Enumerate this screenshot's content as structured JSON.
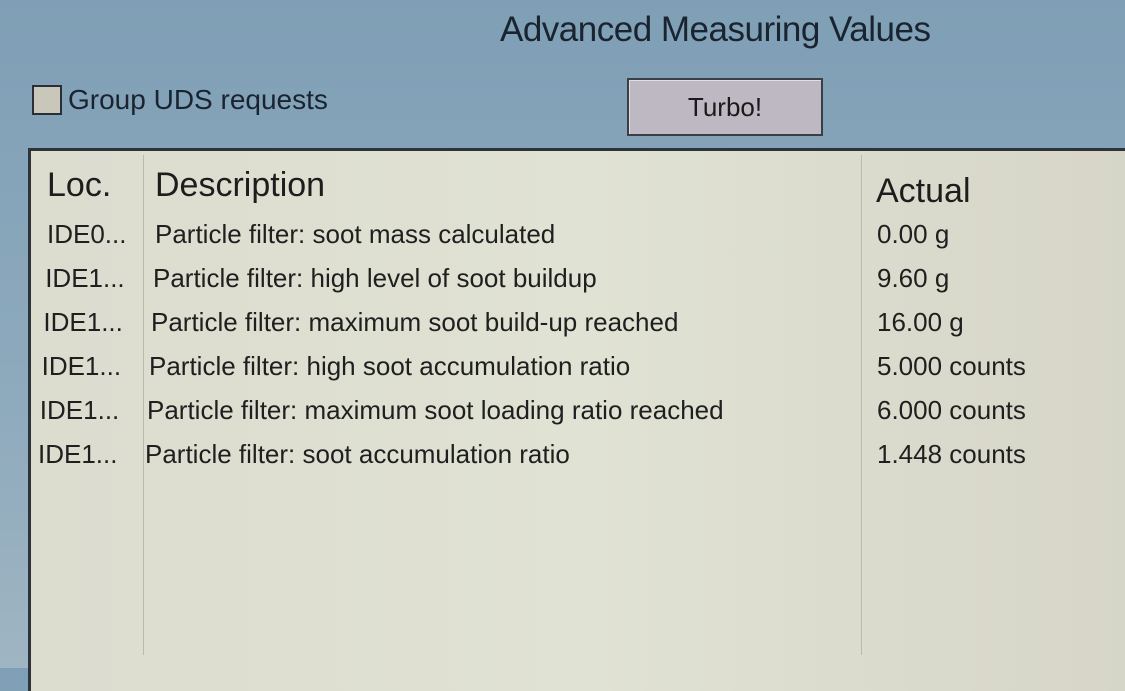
{
  "window": {
    "title": "Advanced Measuring Values"
  },
  "toolbar": {
    "group_uds_label": "Group UDS requests",
    "group_uds_checked": false,
    "turbo_label": "Turbo!"
  },
  "table": {
    "columns": [
      "Loc.",
      "Description",
      "Actual"
    ],
    "rows": [
      {
        "loc": "IDE0...",
        "description": "Particle filter: soot mass calculated",
        "actual": "0.00 g"
      },
      {
        "loc": "IDE1...",
        "description": "Particle filter: high level of soot buildup",
        "actual": "9.60 g"
      },
      {
        "loc": "IDE1...",
        "description": "Particle filter: maximum soot build-up reached",
        "actual": "16.00 g"
      },
      {
        "loc": "IDE1...",
        "description": "Particle filter: high soot accumulation ratio",
        "actual": "5.000 counts"
      },
      {
        "loc": "IDE1...",
        "description": "Particle filter: maximum soot loading ratio reached",
        "actual": "6.000 counts"
      },
      {
        "loc": "IDE1...",
        "description": "Particle filter: soot accumulation ratio",
        "actual": "1.448 counts"
      }
    ]
  }
}
